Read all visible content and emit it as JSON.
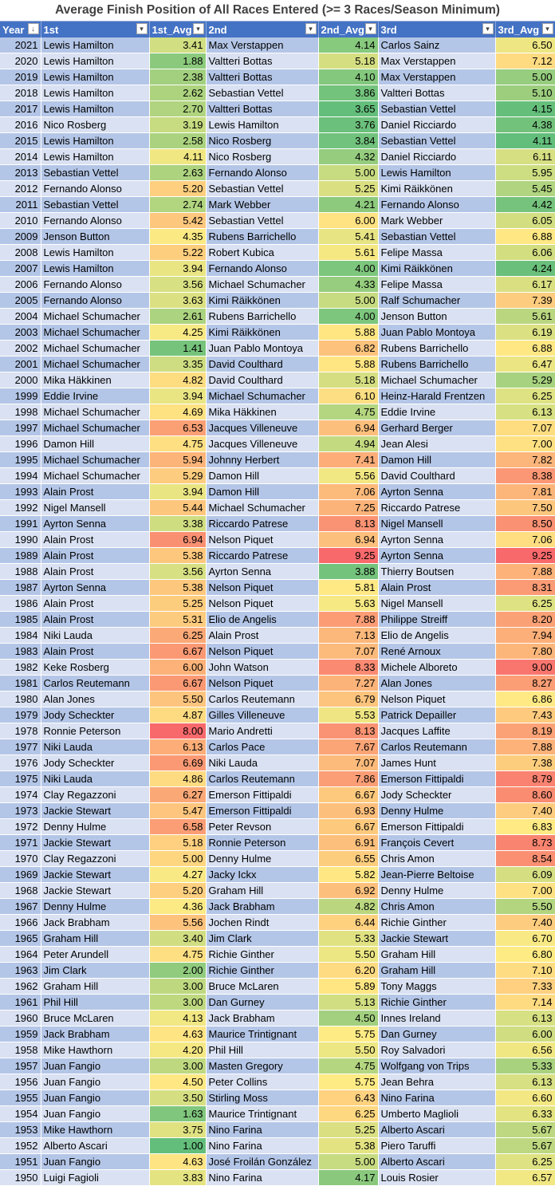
{
  "title": "Average Finish Position of All Races Entered (>= 3 Races/Season Minimum)",
  "columns": [
    "Year",
    "1st",
    "1st_Avg",
    "2nd",
    "2nd_Avg",
    "3rd",
    "3rd_Avg"
  ],
  "sort_indicator": "sort-descending-filter",
  "colors": {
    "header": "#4472c4",
    "band_dark": "#b4c6e7",
    "band_light": "#d9e1f2",
    "scale_low": "#63be7b",
    "scale_mid": "#ffeb84",
    "scale_high": "#f8696b"
  },
  "rows": [
    [
      "2021",
      "Lewis Hamilton",
      "3.41",
      "Max Verstappen",
      "4.14",
      "Carlos Sainz",
      "6.50"
    ],
    [
      "2020",
      "Lewis Hamilton",
      "1.88",
      "Valtteri Bottas",
      "5.18",
      "Max Verstappen",
      "7.12"
    ],
    [
      "2019",
      "Lewis Hamilton",
      "2.38",
      "Valtteri Bottas",
      "4.10",
      "Max Verstappen",
      "5.00"
    ],
    [
      "2018",
      "Lewis Hamilton",
      "2.62",
      "Sebastian Vettel",
      "3.86",
      "Valtteri Bottas",
      "5.10"
    ],
    [
      "2017",
      "Lewis Hamilton",
      "2.70",
      "Valtteri Bottas",
      "3.65",
      "Sebastian Vettel",
      "4.15"
    ],
    [
      "2016",
      "Nico Rosberg",
      "3.19",
      "Lewis Hamilton",
      "3.76",
      "Daniel Ricciardo",
      "4.38"
    ],
    [
      "2015",
      "Lewis Hamilton",
      "2.58",
      "Nico Rosberg",
      "3.84",
      "Sebastian Vettel",
      "4.11"
    ],
    [
      "2014",
      "Lewis Hamilton",
      "4.11",
      "Nico Rosberg",
      "4.32",
      "Daniel Ricciardo",
      "6.11"
    ],
    [
      "2013",
      "Sebastian Vettel",
      "2.63",
      "Fernando Alonso",
      "5.00",
      "Lewis Hamilton",
      "5.95"
    ],
    [
      "2012",
      "Fernando Alonso",
      "5.20",
      "Sebastian Vettel",
      "5.25",
      "Kimi Räikkönen",
      "5.45"
    ],
    [
      "2011",
      "Sebastian Vettel",
      "2.74",
      "Mark Webber",
      "4.21",
      "Fernando Alonso",
      "4.42"
    ],
    [
      "2010",
      "Fernando Alonso",
      "5.42",
      "Sebastian Vettel",
      "6.00",
      "Mark Webber",
      "6.05"
    ],
    [
      "2009",
      "Jenson Button",
      "4.35",
      "Rubens Barrichello",
      "5.41",
      "Sebastian Vettel",
      "6.88"
    ],
    [
      "2008",
      "Lewis Hamilton",
      "5.22",
      "Robert Kubica",
      "5.61",
      "Felipe Massa",
      "6.06"
    ],
    [
      "2007",
      "Lewis Hamilton",
      "3.94",
      "Fernando Alonso",
      "4.00",
      "Kimi Räikkönen",
      "4.24"
    ],
    [
      "2006",
      "Fernando Alonso",
      "3.56",
      "Michael Schumacher",
      "4.33",
      "Felipe Massa",
      "6.17"
    ],
    [
      "2005",
      "Fernando Alonso",
      "3.63",
      "Kimi Räikkönen",
      "5.00",
      "Ralf Schumacher",
      "7.39"
    ],
    [
      "2004",
      "Michael Schumacher",
      "2.61",
      "Rubens Barrichello",
      "4.00",
      "Jenson Button",
      "5.61"
    ],
    [
      "2003",
      "Michael Schumacher",
      "4.25",
      "Kimi Räikkönen",
      "5.88",
      "Juan Pablo Montoya",
      "6.19"
    ],
    [
      "2002",
      "Michael Schumacher",
      "1.41",
      "Juan Pablo Montoya",
      "6.82",
      "Rubens Barrichello",
      "6.88"
    ],
    [
      "2001",
      "Michael Schumacher",
      "3.35",
      "David Coulthard",
      "5.88",
      "Rubens Barrichello",
      "6.47"
    ],
    [
      "2000",
      "Mika Häkkinen",
      "4.82",
      "David Coulthard",
      "5.18",
      "Michael Schumacher",
      "5.29"
    ],
    [
      "1999",
      "Eddie Irvine",
      "3.94",
      "Michael Schumacher",
      "6.10",
      "Heinz-Harald Frentzen",
      "6.25"
    ],
    [
      "1998",
      "Michael Schumacher",
      "4.69",
      "Mika Häkkinen",
      "4.75",
      "Eddie Irvine",
      "6.13"
    ],
    [
      "1997",
      "Michael Schumacher",
      "6.53",
      "Jacques Villeneuve",
      "6.94",
      "Gerhard Berger",
      "7.07"
    ],
    [
      "1996",
      "Damon Hill",
      "4.75",
      "Jacques Villeneuve",
      "4.94",
      "Jean Alesi",
      "7.00"
    ],
    [
      "1995",
      "Michael Schumacher",
      "5.94",
      "Johnny Herbert",
      "7.41",
      "Damon Hill",
      "7.82"
    ],
    [
      "1994",
      "Michael Schumacher",
      "5.29",
      "Damon Hill",
      "5.56",
      "David Coulthard",
      "8.38"
    ],
    [
      "1993",
      "Alain Prost",
      "3.94",
      "Damon Hill",
      "7.06",
      "Ayrton Senna",
      "7.81"
    ],
    [
      "1992",
      "Nigel Mansell",
      "5.44",
      "Michael Schumacher",
      "7.25",
      "Riccardo Patrese",
      "7.50"
    ],
    [
      "1991",
      "Ayrton Senna",
      "3.38",
      "Riccardo Patrese",
      "8.13",
      "Nigel Mansell",
      "8.50"
    ],
    [
      "1990",
      "Alain Prost",
      "6.94",
      "Nelson Piquet",
      "6.94",
      "Ayrton Senna",
      "7.06"
    ],
    [
      "1989",
      "Alain Prost",
      "5.38",
      "Riccardo Patrese",
      "9.25",
      "Ayrton Senna",
      "9.25"
    ],
    [
      "1988",
      "Alain Prost",
      "3.56",
      "Ayrton Senna",
      "3.88",
      "Thierry Boutsen",
      "7.88"
    ],
    [
      "1987",
      "Ayrton Senna",
      "5.38",
      "Nelson Piquet",
      "5.81",
      "Alain Prost",
      "8.31"
    ],
    [
      "1986",
      "Alain Prost",
      "5.25",
      "Nelson Piquet",
      "5.63",
      "Nigel Mansell",
      "6.25"
    ],
    [
      "1985",
      "Alain Prost",
      "5.31",
      "Elio de Angelis",
      "7.88",
      "Philippe Streiff",
      "8.20"
    ],
    [
      "1984",
      "Niki Lauda",
      "6.25",
      "Alain Prost",
      "7.13",
      "Elio de Angelis",
      "7.94"
    ],
    [
      "1983",
      "Alain Prost",
      "6.67",
      "Nelson Piquet",
      "7.07",
      "René Arnoux",
      "7.80"
    ],
    [
      "1982",
      "Keke Rosberg",
      "6.00",
      "John Watson",
      "8.33",
      "Michele Alboreto",
      "9.00"
    ],
    [
      "1981",
      "Carlos Reutemann",
      "6.67",
      "Nelson Piquet",
      "7.27",
      "Alan Jones",
      "8.27"
    ],
    [
      "1980",
      "Alan Jones",
      "5.50",
      "Carlos Reutemann",
      "6.79",
      "Nelson Piquet",
      "6.86"
    ],
    [
      "1979",
      "Jody Scheckter",
      "4.87",
      "Gilles Villeneuve",
      "5.53",
      "Patrick Depailler",
      "7.43"
    ],
    [
      "1978",
      "Ronnie Peterson",
      "8.00",
      "Mario Andretti",
      "8.13",
      "Jacques Laffite",
      "8.19"
    ],
    [
      "1977",
      "Niki Lauda",
      "6.13",
      "Carlos Pace",
      "7.67",
      "Carlos Reutemann",
      "7.88"
    ],
    [
      "1976",
      "Jody Scheckter",
      "6.69",
      "Niki Lauda",
      "7.07",
      "James Hunt",
      "7.38"
    ],
    [
      "1975",
      "Niki Lauda",
      "4.86",
      "Carlos Reutemann",
      "7.86",
      "Emerson Fittipaldi",
      "8.79"
    ],
    [
      "1974",
      "Clay Regazzoni",
      "6.27",
      "Emerson Fittipaldi",
      "6.67",
      "Jody Scheckter",
      "8.60"
    ],
    [
      "1973",
      "Jackie Stewart",
      "5.47",
      "Emerson Fittipaldi",
      "6.93",
      "Denny Hulme",
      "7.40"
    ],
    [
      "1972",
      "Denny Hulme",
      "6.58",
      "Peter Revson",
      "6.67",
      "Emerson Fittipaldi",
      "6.83"
    ],
    [
      "1971",
      "Jackie Stewart",
      "5.18",
      "Ronnie Peterson",
      "6.91",
      "François Cevert",
      "8.73"
    ],
    [
      "1970",
      "Clay Regazzoni",
      "5.00",
      "Denny Hulme",
      "6.55",
      "Chris Amon",
      "8.54"
    ],
    [
      "1969",
      "Jackie Stewart",
      "4.27",
      "Jacky Ickx",
      "5.82",
      "Jean-Pierre Beltoise",
      "6.09"
    ],
    [
      "1968",
      "Jackie Stewart",
      "5.20",
      "Graham Hill",
      "6.92",
      "Denny Hulme",
      "7.00"
    ],
    [
      "1967",
      "Denny Hulme",
      "4.36",
      "Jack Brabham",
      "4.82",
      "Chris Amon",
      "5.50"
    ],
    [
      "1966",
      "Jack Brabham",
      "5.56",
      "Jochen Rindt",
      "6.44",
      "Richie Ginther",
      "7.40"
    ],
    [
      "1965",
      "Graham Hill",
      "3.40",
      "Jim Clark",
      "5.33",
      "Jackie Stewart",
      "6.70"
    ],
    [
      "1964",
      "Peter Arundell",
      "4.75",
      "Richie Ginther",
      "5.50",
      "Graham Hill",
      "6.80"
    ],
    [
      "1963",
      "Jim Clark",
      "2.00",
      "Richie Ginther",
      "6.20",
      "Graham Hill",
      "7.10"
    ],
    [
      "1962",
      "Graham Hill",
      "3.00",
      "Bruce McLaren",
      "5.89",
      "Tony Maggs",
      "7.33"
    ],
    [
      "1961",
      "Phil Hill",
      "3.00",
      "Dan Gurney",
      "5.13",
      "Richie Ginther",
      "7.14"
    ],
    [
      "1960",
      "Bruce McLaren",
      "4.13",
      "Jack Brabham",
      "4.50",
      "Innes Ireland",
      "6.13"
    ],
    [
      "1959",
      "Jack Brabham",
      "4.63",
      "Maurice Trintignant",
      "5.75",
      "Dan Gurney",
      "6.00"
    ],
    [
      "1958",
      "Mike Hawthorn",
      "4.20",
      "Phil Hill",
      "5.50",
      "Roy Salvadori",
      "6.56"
    ],
    [
      "1957",
      "Juan Fangio",
      "3.00",
      "Masten Gregory",
      "4.75",
      "Wolfgang von Trips",
      "5.33"
    ],
    [
      "1956",
      "Juan Fangio",
      "4.50",
      "Peter Collins",
      "5.75",
      "Jean Behra",
      "6.13"
    ],
    [
      "1955",
      "Juan Fangio",
      "3.50",
      "Stirling Moss",
      "6.43",
      "Nino Farina",
      "6.60"
    ],
    [
      "1954",
      "Juan Fangio",
      "1.63",
      "Maurice Trintignant",
      "6.25",
      "Umberto Maglioli",
      "6.33"
    ],
    [
      "1953",
      "Mike Hawthorn",
      "3.75",
      "Nino Farina",
      "5.25",
      "Alberto Ascari",
      "5.67"
    ],
    [
      "1952",
      "Alberto Ascari",
      "1.00",
      "Nino Farina",
      "5.38",
      "Piero Taruffi",
      "5.67"
    ],
    [
      "1951",
      "Juan Fangio",
      "4.63",
      "José Froilán González",
      "5.00",
      "Alberto Ascari",
      "6.25"
    ],
    [
      "1950",
      "Luigi Fagioli",
      "3.83",
      "Nino Farina",
      "4.17",
      "Louis Rosier",
      "6.57"
    ]
  ]
}
